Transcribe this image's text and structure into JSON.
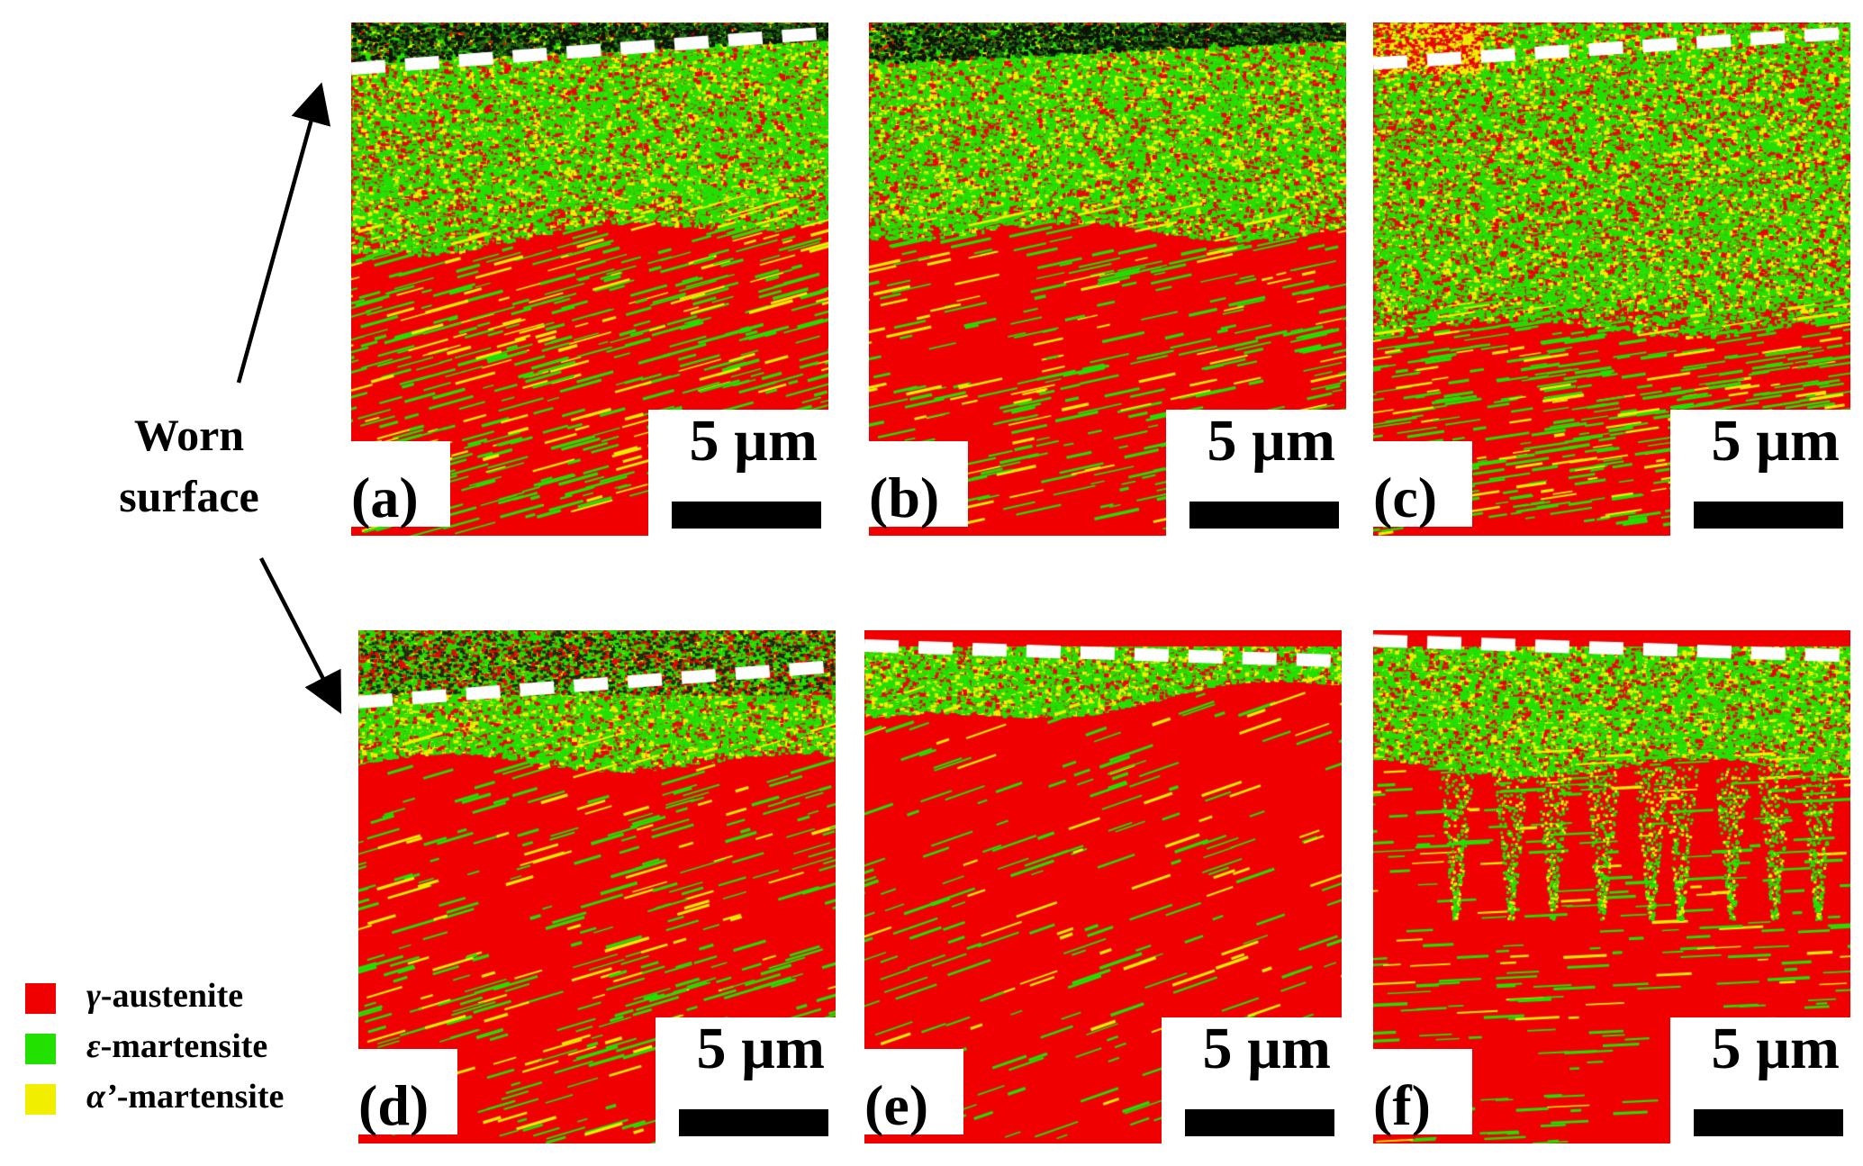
{
  "figure": {
    "annotation": {
      "line1": "Worn",
      "line2": "surface"
    },
    "panels": [
      {
        "label": "(a)",
        "scale_text": "5 µm",
        "profile": "a"
      },
      {
        "label": "(b)",
        "scale_text": "5 µm",
        "profile": "b"
      },
      {
        "label": "(c)",
        "scale_text": "5 µm",
        "profile": "c"
      },
      {
        "label": "(d)",
        "scale_text": "5 µm",
        "profile": "d"
      },
      {
        "label": "(e)",
        "scale_text": "5 µm",
        "profile": "e"
      },
      {
        "label": "(f)",
        "scale_text": "5 µm",
        "profile": "f"
      }
    ],
    "legend": [
      {
        "symbol": "γ",
        "text": "-austenite",
        "color": "#f00000"
      },
      {
        "symbol": "ε",
        "text": "-martensite",
        "color": "#22e000"
      },
      {
        "symbol": "α’",
        "text": "-martensite",
        "color": "#f2ee00"
      }
    ],
    "colors": {
      "austenite": "#f00000",
      "martensite_eps": "#22e000",
      "martensite_alpha": "#f2ee00"
    }
  }
}
